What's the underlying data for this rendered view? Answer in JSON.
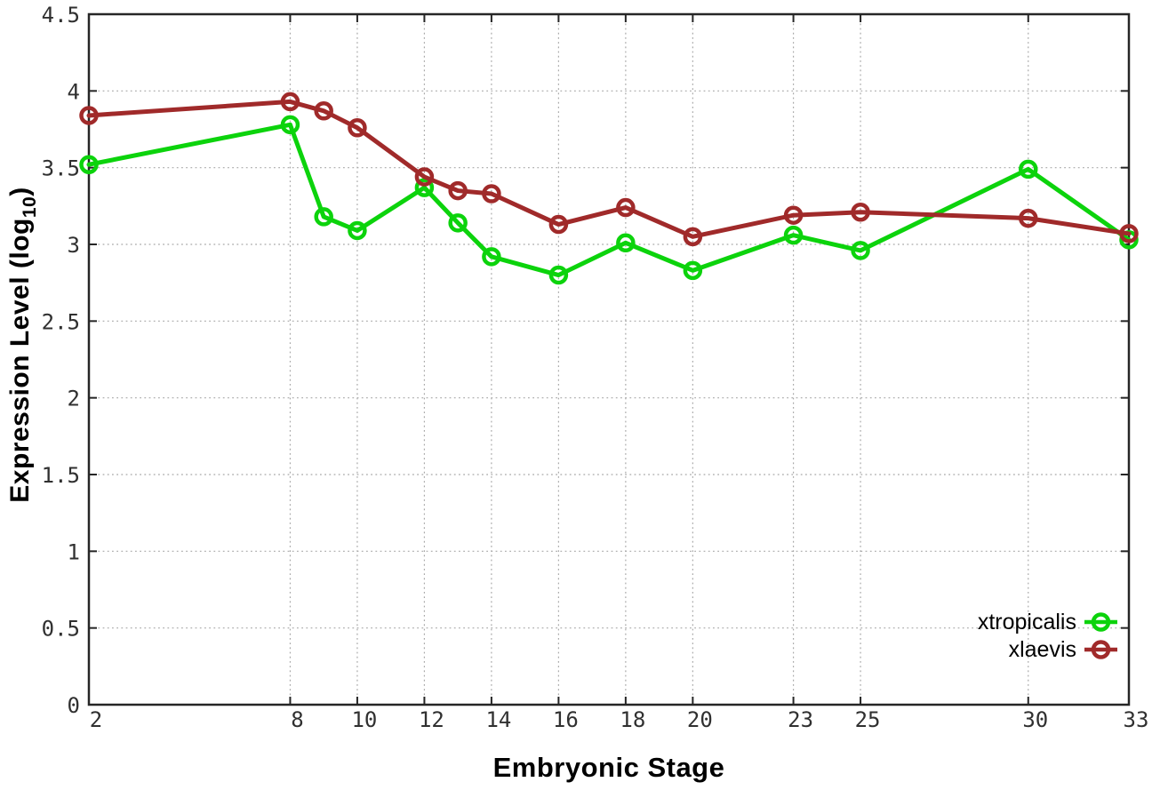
{
  "figure": {
    "background": "#ffffff"
  },
  "axis_titles": {
    "y_pre": "Expression Level (log",
    "y_sub": "10",
    "y_post": ")",
    "x": "Embryonic Stage"
  },
  "chart_data": {
    "type": "line",
    "title": "",
    "xlabel": "Embryonic Stage",
    "ylabel": "Expression Level (log10)",
    "x": [
      2,
      8,
      9,
      10,
      12,
      13,
      14,
      16,
      18,
      20,
      23,
      25,
      30,
      33
    ],
    "series": [
      {
        "name": "xtropicalis",
        "color": "#0cd30c",
        "values": [
          3.52,
          3.78,
          3.18,
          3.09,
          3.37,
          3.14,
          2.92,
          2.8,
          3.01,
          2.83,
          3.06,
          2.96,
          3.49,
          3.03
        ]
      },
      {
        "name": "xlaevis",
        "color": "#a02a2a",
        "values": [
          3.84,
          3.93,
          3.87,
          3.76,
          3.44,
          3.35,
          3.33,
          3.13,
          3.24,
          3.05,
          3.19,
          3.21,
          3.17,
          3.07
        ]
      }
    ],
    "xlim": [
      2,
      33
    ],
    "ylim": [
      0,
      4.5
    ],
    "x_ticks": [
      2,
      8,
      10,
      12,
      14,
      16,
      18,
      20,
      23,
      25,
      30,
      33
    ],
    "y_ticks": [
      0,
      0.5,
      1,
      1.5,
      2,
      2.5,
      3,
      3.5,
      4,
      4.5
    ],
    "grid": true,
    "marker": "open-circle",
    "legend_position": "bottom-right",
    "colors": {
      "axis": "#262626",
      "grid": "#a8a8a8",
      "tick_label": "#303030",
      "legend_text": "#000000"
    }
  }
}
